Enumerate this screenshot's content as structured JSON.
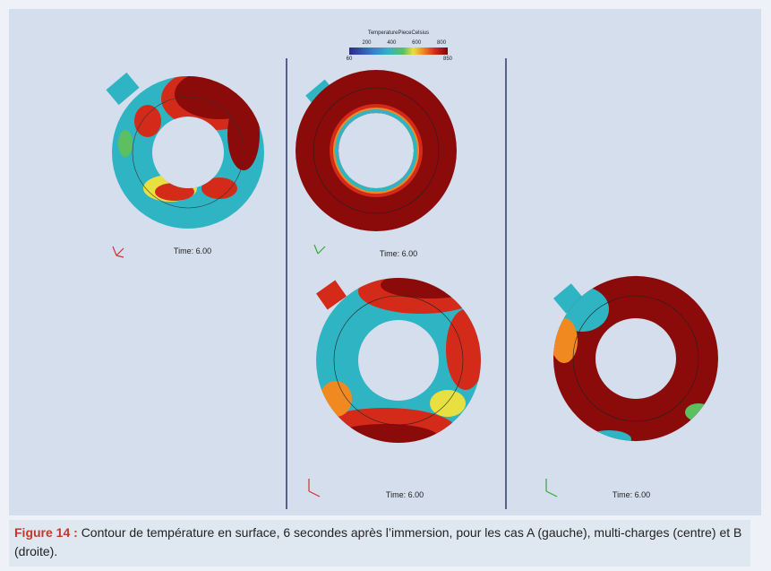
{
  "figure": {
    "colorbar": {
      "title": "TemperaturePieceCelsius",
      "ticks": [
        200,
        400,
        600,
        800
      ],
      "min": 60,
      "max": 850
    },
    "panels": [
      {
        "time": "Time: 6.00"
      },
      {
        "time": "Time: 6.00"
      },
      {
        "time": "Time: 6.00"
      },
      {
        "time": "Time: 6.00"
      }
    ],
    "caption": {
      "label": "Figure 14 :",
      "text": "Contour de température en surface, 6 secondes après l’immersion, pour les cas A (gauche), multi-charges (centre) et B (droite)."
    }
  }
}
